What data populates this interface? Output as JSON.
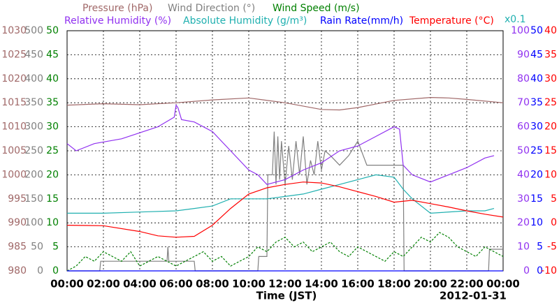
{
  "chart_data": {
    "type": "line",
    "x_label": "Time (JST)",
    "date": "2012-01-31",
    "annotation": "x0.1",
    "annotation_color": "#20b0b0",
    "grid": true,
    "xlim": [
      0,
      24
    ],
    "xticks": [
      {
        "value": 0,
        "label": "00:00"
      },
      {
        "value": 2,
        "label": "02:00"
      },
      {
        "value": 4,
        "label": "04:00"
      },
      {
        "value": 6,
        "label": "06:00"
      },
      {
        "value": 8,
        "label": "08:00"
      },
      {
        "value": 10,
        "label": "10:00"
      },
      {
        "value": 12,
        "label": "12:00"
      },
      {
        "value": 14,
        "label": "14:00"
      },
      {
        "value": 16,
        "label": "16:00"
      },
      {
        "value": 18,
        "label": "18:00"
      },
      {
        "value": 20,
        "label": "20:00"
      },
      {
        "value": 22,
        "label": "22:00"
      },
      {
        "value": 24,
        "label": "00:00"
      }
    ],
    "series": [
      {
        "name": "Pressure (hPa)",
        "color": "#a06868",
        "ylim": [
          980,
          1030
        ],
        "yticks": [
          980,
          985,
          990,
          995,
          1000,
          1005,
          1010,
          1015,
          1020,
          1025,
          1030
        ],
        "x": [
          0,
          2,
          4,
          6,
          8,
          10,
          12,
          14,
          15,
          16,
          18,
          20,
          21,
          22,
          24
        ],
        "values": [
          1014.5,
          1014.8,
          1014.6,
          1015,
          1015.6,
          1016,
          1015,
          1013.6,
          1013.5,
          1014,
          1015.5,
          1016.1,
          1016,
          1015.7,
          1015
        ]
      },
      {
        "name": "Wind Direction (°)",
        "color": "#808080",
        "ylim": [
          0,
          500
        ],
        "yticks": [
          0,
          50,
          100,
          150,
          200,
          250,
          300,
          350,
          400,
          450,
          500
        ],
        "x": [
          0,
          1.8,
          1.85,
          5.5,
          5.55,
          5.6,
          7,
          7.05,
          10.5,
          10.55,
          11,
          11.05,
          11.3,
          11.4,
          11.5,
          11.6,
          11.7,
          11.8,
          12,
          12.2,
          12.4,
          12.6,
          12.8,
          13,
          13.2,
          13.4,
          13.6,
          13.8,
          14,
          14.2,
          14.5,
          15,
          15.5,
          16,
          16.5,
          17,
          18.5,
          18.55,
          23.2,
          23.25,
          24
        ],
        "values": [
          0,
          0,
          20,
          20,
          50,
          20,
          20,
          0,
          0,
          30,
          30,
          200,
          200,
          290,
          180,
          280,
          190,
          270,
          180,
          260,
          190,
          270,
          200,
          280,
          180,
          230,
          200,
          270,
          210,
          250,
          240,
          220,
          240,
          270,
          220,
          220,
          220,
          0,
          0,
          45,
          45
        ]
      },
      {
        "name": "Wind Speed (m/s)",
        "color": "#008000",
        "dashed": true,
        "ylim": [
          0,
          50
        ],
        "yticks": [
          0,
          5,
          10,
          15,
          20,
          25,
          30,
          35,
          40,
          45,
          50
        ],
        "x": [
          0,
          0.5,
          1,
          1.5,
          2,
          2.5,
          3,
          3.5,
          4,
          4.5,
          5,
          5.5,
          6,
          6.5,
          7,
          7.5,
          8,
          8.5,
          9,
          9.5,
          10,
          10.5,
          11,
          11.5,
          12,
          12.5,
          13,
          13.5,
          14,
          14.5,
          15,
          15.5,
          16,
          16.5,
          17,
          17.5,
          18,
          18.5,
          19,
          19.5,
          20,
          20.5,
          21,
          21.5,
          22,
          22.5,
          23,
          23.5,
          24
        ],
        "values": [
          0,
          1,
          3,
          2,
          4,
          3,
          2,
          4,
          1,
          2,
          3,
          2,
          1,
          2,
          3,
          4,
          2,
          3,
          1,
          2,
          3,
          5,
          4,
          6,
          7,
          5,
          6,
          4,
          5,
          6,
          4,
          3,
          5,
          4,
          3,
          2,
          4,
          3,
          5,
          7,
          6,
          8,
          7,
          5,
          4,
          3,
          5,
          4,
          3
        ]
      },
      {
        "name": "Relative Humidity (%)",
        "color": "#9030f0",
        "ylim": [
          0,
          100
        ],
        "yticks": [
          0,
          10,
          20,
          30,
          40,
          50,
          60,
          70,
          80,
          90,
          100
        ],
        "x": [
          0,
          0.5,
          1.5,
          3,
          5,
          5.9,
          6,
          6.1,
          6.3,
          7,
          8,
          9,
          10,
          10.5,
          11,
          12,
          13,
          14,
          15,
          16,
          17,
          18,
          18.3,
          18.5,
          19,
          20,
          21,
          22,
          23,
          23.5
        ],
        "values": [
          53,
          50,
          53,
          55,
          60,
          64,
          69,
          68,
          63,
          62,
          58,
          50,
          42,
          40,
          36,
          38,
          42,
          45,
          50,
          52,
          56,
          60,
          59,
          44,
          40,
          37,
          40,
          43,
          47,
          48
        ]
      },
      {
        "name": "Absolute Humidity (g/m³)",
        "color": "#20b0b0",
        "ylim": [
          0,
          100
        ],
        "x": [
          0,
          2,
          4,
          6,
          7,
          8,
          9,
          10,
          11,
          12,
          13,
          14,
          15,
          16,
          17,
          18,
          18.5,
          19,
          20,
          22,
          23,
          23.5
        ],
        "values": [
          24,
          24,
          24.5,
          25,
          26,
          27,
          30,
          30,
          30,
          31,
          32,
          34,
          36,
          38,
          40,
          39,
          34,
          30,
          24,
          25,
          25,
          26
        ]
      },
      {
        "name": "Rain Rate(mm/h)",
        "color": "#0000ff",
        "ylim": [
          0,
          50
        ],
        "yticks": [
          0,
          5,
          10,
          15,
          20,
          25,
          30,
          35,
          40,
          45,
          50
        ],
        "x": [
          0,
          24
        ],
        "values": [
          0,
          0
        ]
      },
      {
        "name": "Temperature (°C)",
        "color": "#ff0000",
        "ylim": [
          -10,
          40
        ],
        "yticks": [
          -10,
          -5,
          0,
          5,
          10,
          15,
          20,
          25,
          30,
          35,
          40
        ],
        "x": [
          0,
          2,
          4,
          5,
          6,
          7,
          8,
          9,
          10,
          11,
          12,
          13,
          14,
          15,
          16,
          17,
          18,
          19,
          20,
          21,
          22,
          23,
          24
        ],
        "values": [
          -0.5,
          -0.6,
          -1.8,
          -2.7,
          -3,
          -2.8,
          -0.5,
          3,
          6,
          7.3,
          8,
          8.5,
          8.3,
          7.5,
          6.5,
          5.5,
          4.3,
          4.7,
          4,
          3.3,
          2.5,
          1.8,
          1.2
        ]
      }
    ]
  }
}
